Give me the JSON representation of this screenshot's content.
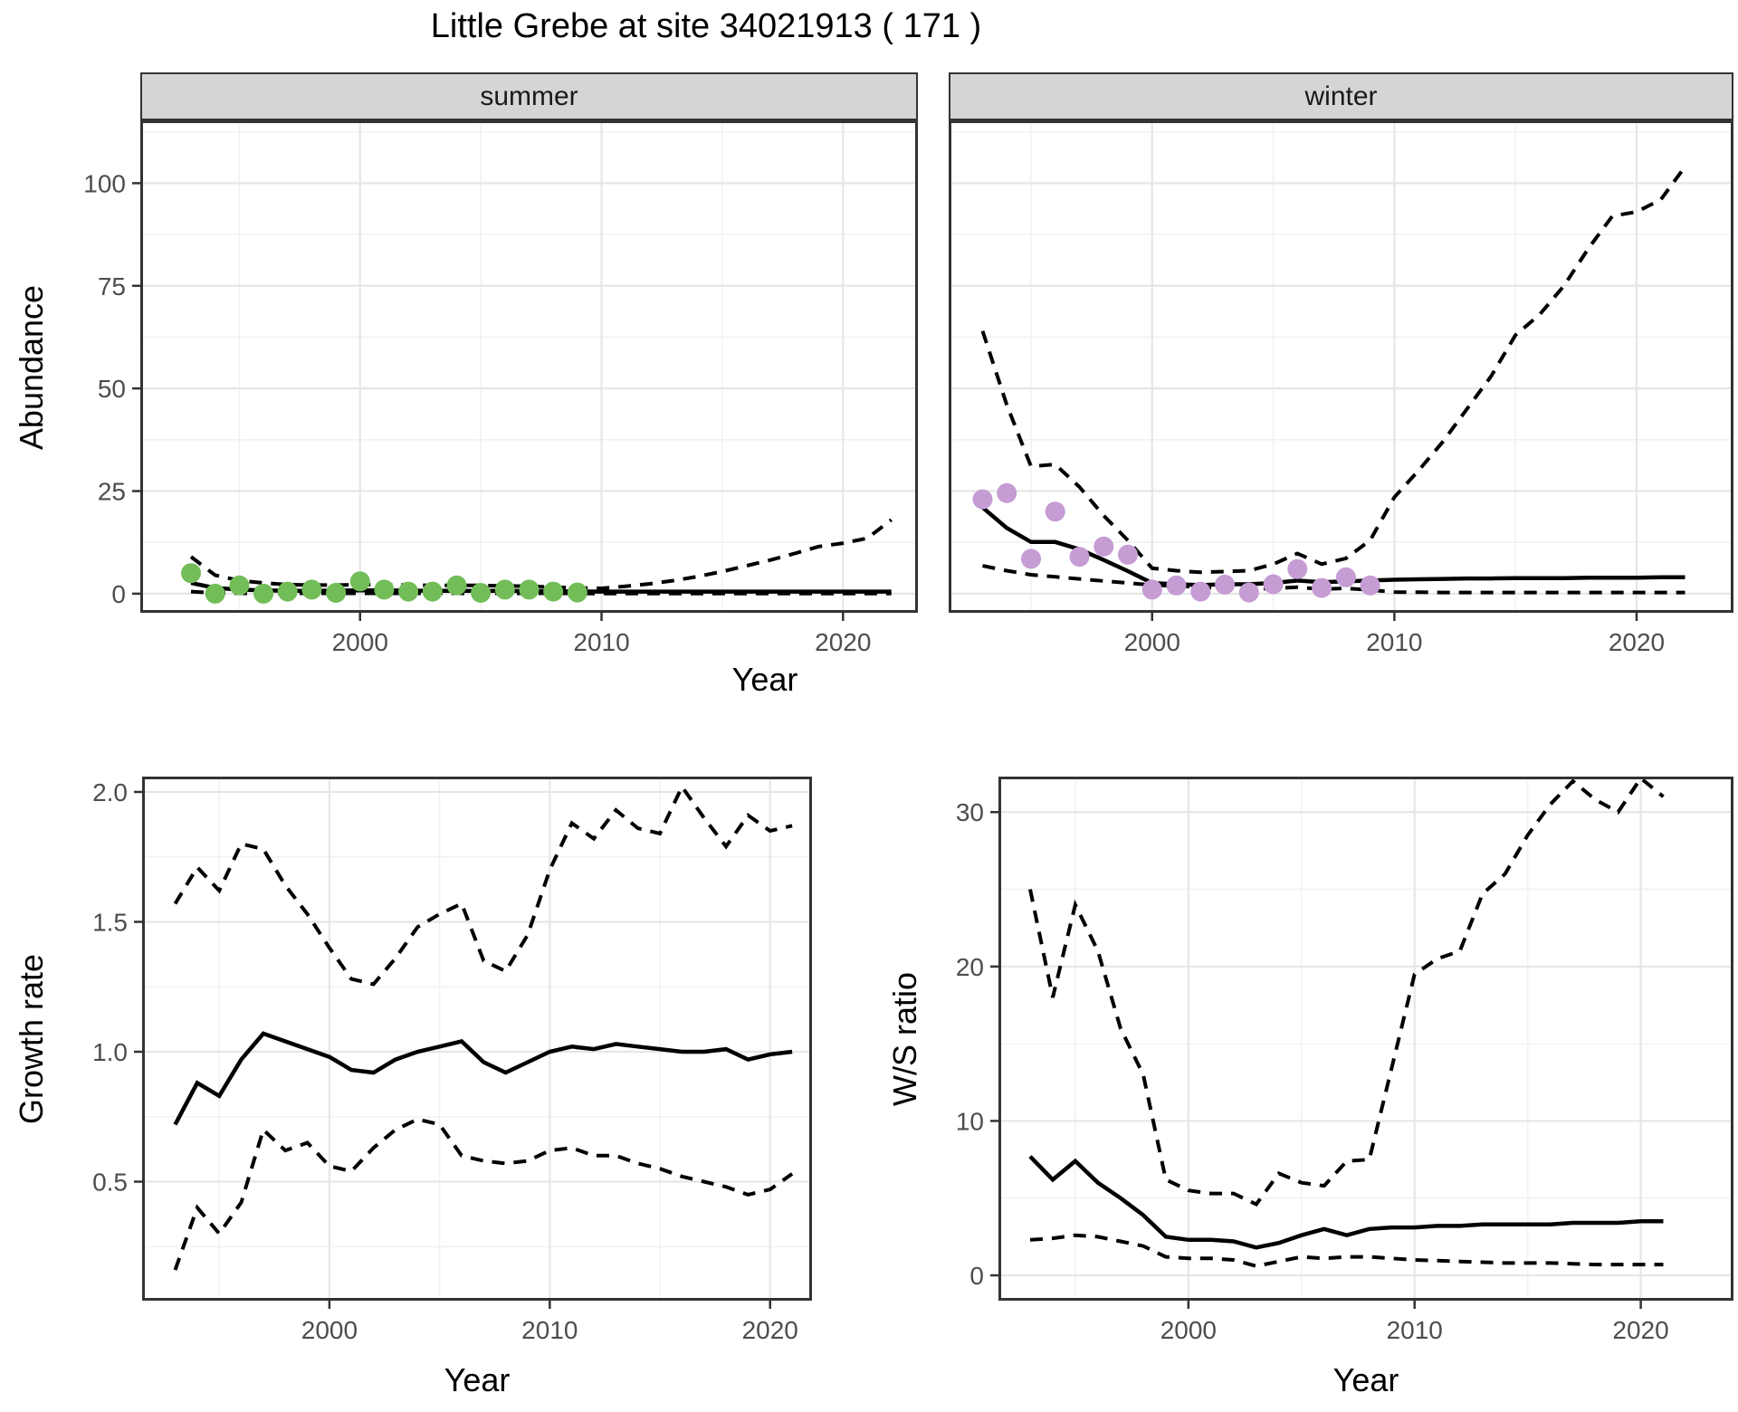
{
  "title": "Little Grebe at site 34021913 ( 171 )",
  "colors": {
    "summer_points": "#72bd58",
    "winter_points": "#c59cd4",
    "line": "#000000",
    "grid_major": "#e6e6e6",
    "grid_minor": "#f2f2f2",
    "strip_bg": "#d5d5d5",
    "axis_text": "#4d4d4d",
    "panel_border": "#333333"
  },
  "chart_data": [
    {
      "id": "abundance_summer",
      "type": "line",
      "facet": "summer",
      "ylabel": "Abundance",
      "xlabel": "Year",
      "xlim": [
        1990.9,
        2023.1
      ],
      "ylim": [
        -4.65,
        115.3
      ],
      "x_ticks": [
        2000,
        2010,
        2020
      ],
      "x_tick_labels": [
        "2000",
        "2010",
        "2020"
      ],
      "y_ticks": [
        0,
        25,
        50,
        75,
        100
      ],
      "y_tick_labels": [
        "0",
        "25",
        "50",
        "75",
        "100"
      ],
      "point_color": "#72bd58",
      "observed": {
        "years": [
          1993,
          1994,
          1995,
          1996,
          1997,
          1998,
          1999,
          2000,
          2001,
          2002,
          2003,
          2004,
          2005,
          2006,
          2007,
          2008,
          2009
        ],
        "values": [
          5,
          0,
          2,
          0,
          0.5,
          1,
          0.2,
          3,
          1,
          0.5,
          0.5,
          2,
          0.2,
          1,
          1,
          0.5,
          0.3
        ]
      },
      "fit": {
        "years": [
          1993,
          1994,
          1995,
          1996,
          1997,
          1998,
          1999,
          2000,
          2001,
          2002,
          2003,
          2004,
          2005,
          2006,
          2007,
          2008,
          2009,
          2010,
          2011,
          2012,
          2013,
          2014,
          2015,
          2016,
          2017,
          2018,
          2019,
          2020,
          2021,
          2022
        ],
        "values": [
          2.6,
          1.4,
          1.0,
          0.8,
          0.7,
          0.7,
          0.75,
          0.8,
          0.8,
          0.75,
          0.7,
          0.7,
          0.7,
          0.7,
          0.65,
          0.6,
          0.55,
          0.5,
          0.5,
          0.5,
          0.5,
          0.5,
          0.5,
          0.5,
          0.5,
          0.5,
          0.5,
          0.5,
          0.5,
          0.5
        ]
      },
      "upper": {
        "years": [
          1993,
          1994,
          1995,
          1996,
          1997,
          1998,
          1999,
          2000,
          2001,
          2002,
          2003,
          2004,
          2005,
          2006,
          2007,
          2008,
          2009,
          2010,
          2011,
          2012,
          2013,
          2014,
          2015,
          2016,
          2017,
          2018,
          2019,
          2020,
          2021,
          2022
        ],
        "values": [
          9,
          4.5,
          3.2,
          2.6,
          2.2,
          2.1,
          2.1,
          2.2,
          2.2,
          2.1,
          2.0,
          2.0,
          2.0,
          1.9,
          1.8,
          1.6,
          1.4,
          1.3,
          1.8,
          2.4,
          3.2,
          4.2,
          5.4,
          6.8,
          8.2,
          9.8,
          11.5,
          12.3,
          13.5,
          18
        ]
      },
      "lower": {
        "years": [
          1993,
          1994,
          1995,
          1996,
          1997,
          1998,
          1999,
          2000,
          2001,
          2002,
          2003,
          2004,
          2005,
          2006,
          2007,
          2008,
          2009,
          2010,
          2011,
          2012,
          2013,
          2014,
          2015,
          2016,
          2017,
          2018,
          2019,
          2020,
          2021,
          2022
        ],
        "values": [
          0.5,
          0.2,
          0.1,
          0.1,
          0.1,
          0.1,
          0.1,
          0.1,
          0.1,
          0.1,
          0.1,
          0.1,
          0.1,
          0.1,
          0.1,
          0.1,
          0.05,
          0.05,
          0.05,
          0.05,
          0.05,
          0.05,
          0.05,
          0.05,
          0.05,
          0.05,
          0.05,
          0.05,
          0.05,
          0.05
        ]
      }
    },
    {
      "id": "abundance_winter",
      "type": "line",
      "facet": "winter",
      "ylabel": "Abundance",
      "xlabel": "Year",
      "xlim": [
        1991.6,
        2024.0
      ],
      "ylim": [
        -4.65,
        115.3
      ],
      "x_ticks": [
        2000,
        2010,
        2020
      ],
      "x_tick_labels": [
        "2000",
        "2010",
        "2020"
      ],
      "y_ticks": [
        0,
        25,
        50,
        75,
        100
      ],
      "y_tick_labels": [],
      "point_color": "#c59cd4",
      "observed": {
        "years": [
          1993,
          1994,
          1995,
          1996,
          1997,
          1998,
          1999,
          2000,
          2001,
          2002,
          2003,
          2004,
          2005,
          2006,
          2007,
          2008,
          2009
        ],
        "values": [
          23,
          24.5,
          8.5,
          20,
          9,
          11.5,
          9.5,
          1,
          2,
          0.5,
          2.2,
          0.3,
          2.3,
          6,
          1.4,
          4,
          2
        ]
      },
      "fit": {
        "years": [
          1993,
          1994,
          1995,
          1996,
          1997,
          1998,
          1999,
          2000,
          2001,
          2002,
          2003,
          2004,
          2005,
          2006,
          2007,
          2008,
          2009,
          2010,
          2011,
          2012,
          2013,
          2014,
          2015,
          2016,
          2017,
          2018,
          2019,
          2020,
          2021,
          2022
        ],
        "values": [
          21,
          16,
          12.6,
          12.6,
          10.8,
          8.2,
          5.5,
          2.6,
          2.3,
          2.1,
          2.3,
          2.3,
          2.6,
          3.2,
          2.8,
          3.0,
          3.2,
          3.4,
          3.5,
          3.6,
          3.7,
          3.7,
          3.8,
          3.8,
          3.8,
          3.9,
          3.9,
          3.9,
          4.0,
          4.0
        ]
      },
      "upper": {
        "years": [
          1993,
          1994,
          1995,
          1996,
          1997,
          1998,
          1999,
          2000,
          2001,
          2002,
          2003,
          2004,
          2005,
          2006,
          2007,
          2008,
          2009,
          2010,
          2011,
          2012,
          2013,
          2014,
          2015,
          2016,
          2017,
          2018,
          2019,
          2020,
          2021,
          2022
        ],
        "values": [
          64,
          46,
          31,
          31.5,
          26,
          19,
          13,
          6.2,
          5.6,
          5.2,
          5.4,
          5.6,
          7.2,
          9.8,
          7.2,
          8.6,
          13,
          23.5,
          30,
          37,
          45,
          53,
          63,
          68,
          75,
          84,
          92,
          93,
          96,
          104
        ]
      },
      "lower": {
        "years": [
          1993,
          1994,
          1995,
          1996,
          1997,
          1998,
          1999,
          2000,
          2001,
          2002,
          2003,
          2004,
          2005,
          2006,
          2007,
          2008,
          2009,
          2010,
          2011,
          2012,
          2013,
          2014,
          2015,
          2016,
          2017,
          2018,
          2019,
          2020,
          2021,
          2022
        ],
        "values": [
          6.8,
          5.6,
          4.6,
          4.1,
          3.6,
          3.1,
          2.6,
          2.1,
          1.9,
          1.6,
          1.3,
          1.1,
          1.3,
          1.6,
          1.1,
          1.3,
          0.9,
          0.4,
          0.35,
          0.3,
          0.3,
          0.3,
          0.3,
          0.3,
          0.3,
          0.3,
          0.3,
          0.3,
          0.3,
          0.3
        ]
      }
    },
    {
      "id": "growth_rate",
      "type": "line",
      "facet": "",
      "ylabel": "Growth rate",
      "xlabel": "Year",
      "xlim": [
        1991.5,
        2021.9
      ],
      "ylim": [
        0.042,
        2.059
      ],
      "x_ticks": [
        2000,
        2010,
        2020
      ],
      "x_tick_labels": [
        "2000",
        "2010",
        "2020"
      ],
      "y_ticks": [
        0.5,
        1.0,
        1.5,
        2.0
      ],
      "y_tick_labels": [
        "0.5",
        "1.0",
        "1.5",
        "2.0"
      ],
      "fit": {
        "years": [
          1993,
          1994,
          1995,
          1996,
          1997,
          1998,
          1999,
          2000,
          2001,
          2002,
          2003,
          2004,
          2005,
          2006,
          2007,
          2008,
          2009,
          2010,
          2011,
          2012,
          2013,
          2014,
          2015,
          2016,
          2017,
          2018,
          2019,
          2020,
          2021
        ],
        "values": [
          0.72,
          0.88,
          0.83,
          0.97,
          1.07,
          1.04,
          1.01,
          0.98,
          0.93,
          0.92,
          0.97,
          1.0,
          1.02,
          1.04,
          0.96,
          0.92,
          0.96,
          1.0,
          1.02,
          1.01,
          1.03,
          1.02,
          1.01,
          1.0,
          1.0,
          1.01,
          0.97,
          0.99,
          1.0
        ]
      },
      "upper": {
        "years": [
          1993,
          1994,
          1995,
          1996,
          1997,
          1998,
          1999,
          2000,
          2001,
          2002,
          2003,
          2004,
          2005,
          2006,
          2007,
          2008,
          2009,
          2010,
          2011,
          2012,
          2013,
          2014,
          2015,
          2016,
          2017,
          2018,
          2019,
          2020,
          2021
        ],
        "values": [
          1.57,
          1.71,
          1.62,
          1.8,
          1.78,
          1.64,
          1.53,
          1.4,
          1.28,
          1.26,
          1.36,
          1.48,
          1.53,
          1.57,
          1.35,
          1.31,
          1.45,
          1.7,
          1.88,
          1.82,
          1.93,
          1.86,
          1.84,
          2.02,
          1.9,
          1.79,
          1.91,
          1.85,
          1.87
        ]
      },
      "lower": {
        "years": [
          1993,
          1994,
          1995,
          1996,
          1997,
          1998,
          1999,
          2000,
          2001,
          2002,
          2003,
          2004,
          2005,
          2006,
          2007,
          2008,
          2009,
          2010,
          2011,
          2012,
          2013,
          2014,
          2015,
          2016,
          2017,
          2018,
          2019,
          2020,
          2021
        ],
        "values": [
          0.16,
          0.4,
          0.3,
          0.42,
          0.7,
          0.62,
          0.65,
          0.56,
          0.54,
          0.63,
          0.7,
          0.74,
          0.72,
          0.6,
          0.58,
          0.57,
          0.58,
          0.62,
          0.63,
          0.6,
          0.6,
          0.57,
          0.55,
          0.52,
          0.5,
          0.48,
          0.45,
          0.47,
          0.53
        ]
      }
    },
    {
      "id": "ws_ratio",
      "type": "line",
      "facet": "",
      "ylabel": "W/S ratio",
      "xlabel": "Year",
      "xlim": [
        1991.6,
        2024.1
      ],
      "ylim": [
        -1.64,
        32.3
      ],
      "x_ticks": [
        2000,
        2010,
        2020
      ],
      "x_tick_labels": [
        "2000",
        "2010",
        "2020"
      ],
      "y_ticks": [
        0,
        10,
        20,
        30
      ],
      "y_tick_labels": [
        "0",
        "10",
        "20",
        "30"
      ],
      "fit": {
        "years": [
          1993,
          1994,
          1995,
          1996,
          1997,
          1998,
          1999,
          2000,
          2001,
          2002,
          2003,
          2004,
          2005,
          2006,
          2007,
          2008,
          2009,
          2010,
          2011,
          2012,
          2013,
          2014,
          2015,
          2016,
          2017,
          2018,
          2019,
          2020,
          2021
        ],
        "values": [
          7.7,
          6.2,
          7.4,
          6.0,
          5.0,
          3.9,
          2.5,
          2.3,
          2.3,
          2.2,
          1.8,
          2.1,
          2.6,
          3.0,
          2.6,
          3.0,
          3.1,
          3.1,
          3.2,
          3.2,
          3.3,
          3.3,
          3.3,
          3.3,
          3.4,
          3.4,
          3.4,
          3.5,
          3.5
        ]
      },
      "upper": {
        "years": [
          1993,
          1994,
          1995,
          1996,
          1997,
          1998,
          1999,
          2000,
          2001,
          2002,
          2003,
          2004,
          2005,
          2006,
          2007,
          2008,
          2009,
          2010,
          2011,
          2012,
          2013,
          2014,
          2015,
          2016,
          2017,
          2018,
          2019,
          2020,
          2021
        ],
        "values": [
          25,
          18,
          24,
          21,
          16,
          13,
          6.2,
          5.5,
          5.3,
          5.3,
          4.6,
          6.6,
          6.0,
          5.8,
          7.4,
          7.5,
          13.5,
          19.5,
          20.5,
          21,
          24.7,
          26,
          28.5,
          30.5,
          32,
          30.8,
          30,
          32.2,
          31
        ]
      },
      "lower": {
        "years": [
          1993,
          1994,
          1995,
          1996,
          1997,
          1998,
          1999,
          2000,
          2001,
          2002,
          2003,
          2004,
          2005,
          2006,
          2007,
          2008,
          2009,
          2010,
          2011,
          2012,
          2013,
          2014,
          2015,
          2016,
          2017,
          2018,
          2019,
          2020,
          2021
        ],
        "values": [
          2.3,
          2.4,
          2.6,
          2.5,
          2.2,
          1.9,
          1.2,
          1.1,
          1.1,
          1.0,
          0.6,
          0.9,
          1.2,
          1.1,
          1.2,
          1.2,
          1.1,
          1.0,
          0.95,
          0.9,
          0.85,
          0.8,
          0.8,
          0.8,
          0.75,
          0.7,
          0.7,
          0.7,
          0.7
        ]
      }
    }
  ]
}
